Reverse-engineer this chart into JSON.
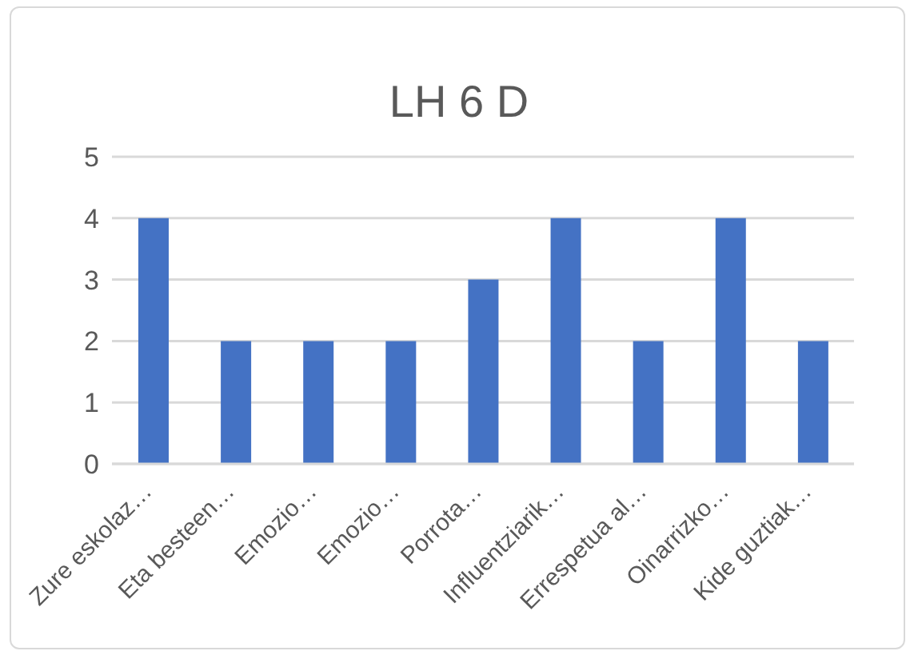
{
  "chart_data": {
    "type": "bar",
    "title": "LH 6 D",
    "categories": [
      "Zure eskolaz…",
      "Eta besteen…",
      "Emozio…",
      "Emozio…",
      "Porrota…",
      "Influentziarik…",
      "Errespetua al…",
      "Oinarrizko…",
      "Kide guztiak…"
    ],
    "values": [
      4,
      2,
      2,
      2,
      3,
      4,
      2,
      4,
      2
    ],
    "color": "#4472c4",
    "ylim": [
      0,
      5
    ],
    "yticks": [
      0,
      1,
      2,
      3,
      4,
      5
    ],
    "grid": "y"
  }
}
